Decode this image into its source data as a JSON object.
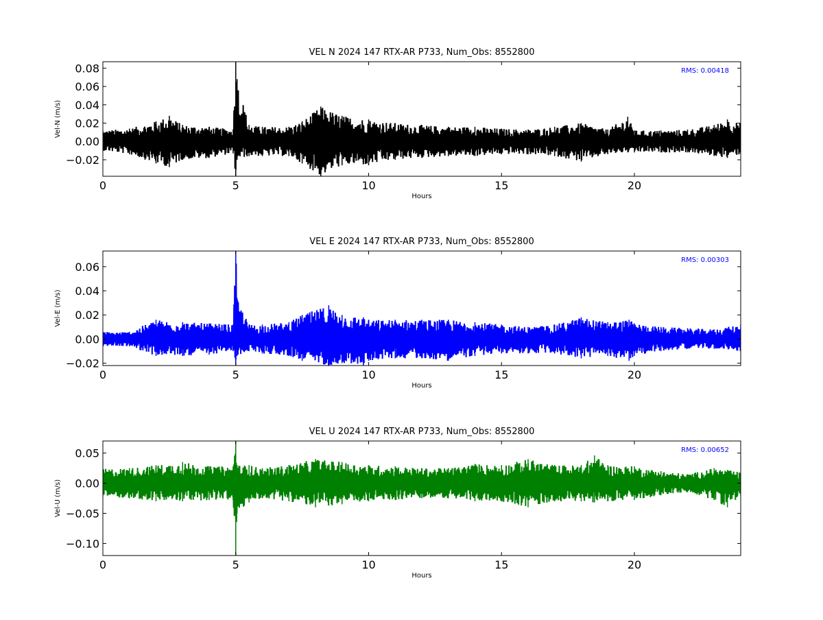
{
  "chart_data": [
    {
      "type": "line",
      "title": "VEL N 2024 147 RTX-AR  P733, Num_Obs: 8552800",
      "xlabel": "Hours",
      "ylabel": "Vel-N (m/s)",
      "xlim": [
        0,
        24
      ],
      "ylim": [
        -0.038,
        0.087
      ],
      "xticks": [
        0,
        5,
        10,
        15,
        20
      ],
      "yticks": [
        -0.02,
        0.0,
        0.02,
        0.04,
        0.06,
        0.08
      ],
      "ytick_labels": [
        "−0.02",
        "0.00",
        "0.02",
        "0.04",
        "0.06",
        "0.08"
      ],
      "color": "#000000",
      "rms_label": "RMS:  0.00418",
      "series": [
        {
          "x": [
            0,
            1,
            2,
            2.5,
            3,
            4,
            4.9,
            5.0,
            5.05,
            5.5,
            6,
            7,
            7.5,
            8.2,
            9,
            10,
            11,
            12,
            13,
            14,
            15,
            16,
            17,
            18,
            19,
            19.75,
            20,
            21,
            22,
            23,
            23.5,
            24
          ],
          "upper": [
            0.012,
            0.014,
            0.022,
            0.028,
            0.018,
            0.016,
            0.013,
            0.087,
            0.068,
            0.018,
            0.016,
            0.016,
            0.022,
            0.038,
            0.028,
            0.024,
            0.02,
            0.018,
            0.016,
            0.016,
            0.014,
            0.013,
            0.016,
            0.02,
            0.013,
            0.027,
            0.012,
            0.012,
            0.013,
            0.018,
            0.024,
            0.02
          ],
          "lower": [
            -0.01,
            -0.014,
            -0.024,
            -0.028,
            -0.02,
            -0.018,
            -0.013,
            -0.038,
            -0.02,
            -0.016,
            -0.016,
            -0.016,
            -0.024,
            -0.038,
            -0.026,
            -0.026,
            -0.02,
            -0.018,
            -0.016,
            -0.016,
            -0.014,
            -0.014,
            -0.016,
            -0.022,
            -0.014,
            -0.012,
            -0.012,
            -0.012,
            -0.012,
            -0.016,
            -0.018,
            -0.014
          ]
        }
      ]
    },
    {
      "type": "line",
      "title": "VEL E 2024 147 RTX-AR  P733, Num_Obs: 8552800",
      "xlabel": "Hours",
      "ylabel": "Vel-E (m/s)",
      "xlim": [
        0,
        24
      ],
      "ylim": [
        -0.022,
        0.073
      ],
      "xticks": [
        0,
        5,
        10,
        15,
        20
      ],
      "yticks": [
        -0.02,
        0.0,
        0.02,
        0.04,
        0.06
      ],
      "ytick_labels": [
        "−0.02",
        "0.00",
        "0.02",
        "0.04",
        "0.06"
      ],
      "color": "#0000ff",
      "rms_label": "RMS:  0.00303",
      "series": [
        {
          "x": [
            0,
            1,
            2,
            3,
            4,
            4.9,
            5.0,
            5.05,
            5.5,
            6,
            7,
            7.5,
            8.5,
            9,
            9.8,
            10,
            11,
            12,
            13,
            14,
            15,
            16,
            17,
            18,
            19,
            19.8,
            20,
            21,
            22,
            23,
            24
          ],
          "upper": [
            0.006,
            0.006,
            0.016,
            0.014,
            0.013,
            0.012,
            0.073,
            0.034,
            0.012,
            0.012,
            0.014,
            0.02,
            0.028,
            0.02,
            0.018,
            0.016,
            0.016,
            0.016,
            0.016,
            0.014,
            0.012,
            0.01,
            0.012,
            0.018,
            0.014,
            0.016,
            0.013,
            0.01,
            0.009,
            0.008,
            0.012
          ],
          "lower": [
            -0.006,
            -0.006,
            -0.014,
            -0.014,
            -0.013,
            -0.01,
            -0.022,
            -0.014,
            -0.01,
            -0.012,
            -0.014,
            -0.018,
            -0.022,
            -0.02,
            -0.022,
            -0.018,
            -0.016,
            -0.016,
            -0.018,
            -0.014,
            -0.012,
            -0.012,
            -0.012,
            -0.016,
            -0.014,
            -0.018,
            -0.014,
            -0.01,
            -0.008,
            -0.008,
            -0.01
          ]
        }
      ]
    },
    {
      "type": "line",
      "title": "VEL U 2024 147 RTX-AR  P733, Num_Obs: 8552800",
      "xlabel": "Hours",
      "ylabel": "Vel-U (m/s)",
      "xlim": [
        0,
        24
      ],
      "ylim": [
        -0.12,
        0.07
      ],
      "xticks": [
        0,
        5,
        10,
        15,
        20
      ],
      "yticks": [
        -0.1,
        -0.05,
        0.0,
        0.05
      ],
      "ytick_labels": [
        "−0.10",
        "−0.05",
        "0.00",
        "0.05"
      ],
      "color": "#008000",
      "rms_label": "RMS:  0.00652",
      "series": [
        {
          "x": [
            0,
            1,
            2,
            3,
            4,
            4.9,
            5.0,
            5.05,
            5.5,
            6,
            7,
            8,
            9,
            10,
            11,
            12,
            13,
            14,
            15,
            16,
            17,
            18,
            18.5,
            19,
            20,
            21,
            22,
            23,
            23.5,
            24
          ],
          "upper": [
            0.024,
            0.025,
            0.03,
            0.035,
            0.028,
            0.028,
            0.07,
            0.03,
            0.03,
            0.025,
            0.03,
            0.04,
            0.035,
            0.03,
            0.028,
            0.025,
            0.025,
            0.032,
            0.03,
            0.04,
            0.03,
            0.03,
            0.046,
            0.03,
            0.028,
            0.02,
            0.015,
            0.025,
            0.022,
            0.018
          ],
          "lower": [
            -0.022,
            -0.025,
            -0.03,
            -0.03,
            -0.028,
            -0.028,
            -0.12,
            -0.05,
            -0.032,
            -0.025,
            -0.03,
            -0.04,
            -0.035,
            -0.03,
            -0.028,
            -0.025,
            -0.025,
            -0.03,
            -0.03,
            -0.04,
            -0.03,
            -0.03,
            -0.032,
            -0.03,
            -0.028,
            -0.02,
            -0.015,
            -0.028,
            -0.04,
            -0.02
          ]
        }
      ]
    }
  ]
}
